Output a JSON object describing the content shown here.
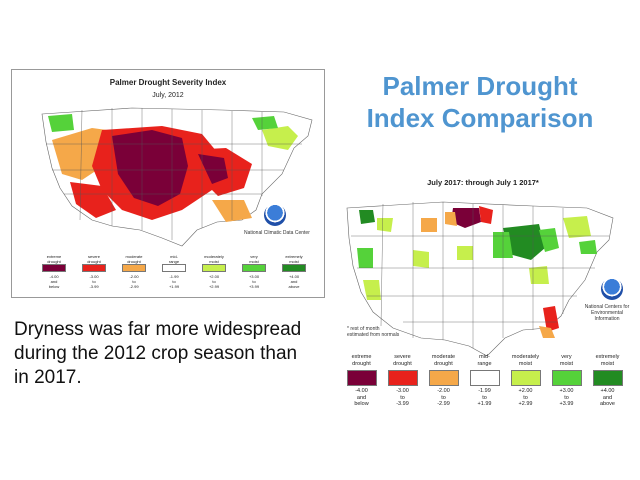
{
  "slide": {
    "title_line1": "Palmer Drought",
    "title_line2": "Index Comparison",
    "body_text": "Dryness was far more widespread during the 2012 crop season than in 2017."
  },
  "map_2012": {
    "title": "Palmer Drought Severity Index",
    "subtitle": "July, 2012",
    "credit": "National Climatic Data Center",
    "legend": [
      {
        "top": "extreme\ndrought",
        "bottom": "-4.00\nand\nbelow",
        "color": "#7a0038"
      },
      {
        "top": "severe\ndrought",
        "bottom": "-3.00\nto\n-3.99",
        "color": "#e8221c"
      },
      {
        "top": "moderate\ndrought",
        "bottom": "-2.00\nto\n-2.99",
        "color": "#f5a849"
      },
      {
        "top": "mid-\nrange",
        "bottom": "-1.99\nto\n+1.99",
        "color": "#ffffff"
      },
      {
        "top": "moderately\nmoist",
        "bottom": "+2.00\nto\n+2.99",
        "color": "#c6ef4c"
      },
      {
        "top": "very\nmoist",
        "bottom": "+3.00\nto\n+3.99",
        "color": "#55d23a"
      },
      {
        "top": "extremely\nmoist",
        "bottom": "+4.00\nand\nabove",
        "color": "#228b22"
      }
    ]
  },
  "map_2017": {
    "title": "July 2017: through July  1 2017*",
    "credit": "National Centers for\nEnvironmental\nInformation",
    "note": "* rest of month\nestimated from normals",
    "legend": [
      {
        "top": "extreme\ndrought",
        "bottom": "-4.00\nand\nbelow",
        "color": "#7a0038"
      },
      {
        "top": "severe\ndrought",
        "bottom": "-3.00\nto\n-3.99",
        "color": "#e8221c"
      },
      {
        "top": "moderate\ndrought",
        "bottom": "-2.00\nto\n-2.99",
        "color": "#f5a849"
      },
      {
        "top": "mid-\nrange",
        "bottom": "-1.99\nto\n+1.99",
        "color": "#ffffff"
      },
      {
        "top": "moderately\nmoist",
        "bottom": "+2.00\nto\n+2.99",
        "color": "#c6ef4c"
      },
      {
        "top": "very\nmoist",
        "bottom": "+3.00\nto\n+3.99",
        "color": "#55d23a"
      },
      {
        "top": "extremely\nmoist",
        "bottom": "+4.00\nand\nabove",
        "color": "#228b22"
      }
    ]
  }
}
